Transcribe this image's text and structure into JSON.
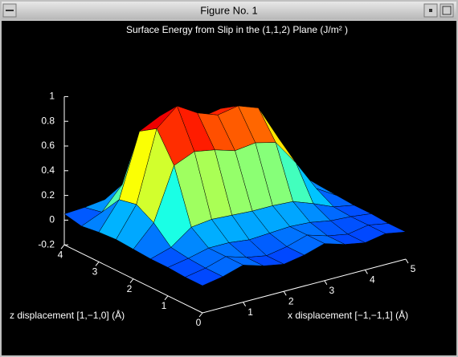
{
  "window": {
    "title": "Figure No. 1"
  },
  "chart_data": {
    "type": "surface",
    "title": "Surface Energy from Slip in the (1,1,2) Plane (J/m² )",
    "xlabel": "x displacement [−1,−1,1] (Å)",
    "ylabel": "z displacement [1,−1,0] (Å)",
    "colormap": "jet",
    "x": [
      0,
      0.5,
      1,
      1.5,
      2,
      2.5,
      3,
      3.5,
      4,
      4.5,
      5
    ],
    "y": [
      0,
      0.5,
      1,
      1.5,
      2,
      2.5,
      3,
      3.5,
      4
    ],
    "values": [
      [
        0.02,
        0.05,
        0.1,
        0.05,
        0.02,
        0.05,
        0.1,
        0.05,
        0.02,
        0.05,
        0.02
      ],
      [
        0.02,
        0.05,
        0.1,
        0.05,
        0.02,
        0.05,
        0.1,
        0.05,
        0.02,
        0.05,
        0.02
      ],
      [
        0.03,
        0.06,
        0.1,
        0.1,
        0.08,
        0.09,
        0.1,
        0.09,
        0.06,
        0.05,
        0.03
      ],
      [
        0.03,
        0.08,
        0.2,
        0.22,
        0.21,
        0.2,
        0.2,
        0.19,
        0.13,
        0.06,
        0.03
      ],
      [
        0.04,
        0.21,
        0.63,
        0.7,
        0.67,
        0.62,
        0.64,
        0.6,
        0.39,
        0.14,
        0.04
      ],
      [
        0.05,
        0.29,
        0.86,
        1.0,
        0.9,
        0.84,
        0.87,
        0.81,
        0.52,
        0.19,
        0.05
      ],
      [
        0.04,
        0.26,
        0.77,
        0.85,
        0.81,
        0.75,
        0.78,
        0.72,
        0.47,
        0.17,
        0.04
      ],
      [
        0.02,
        0.09,
        0.27,
        0.3,
        0.29,
        0.26,
        0.28,
        0.26,
        0.17,
        0.06,
        0.02
      ],
      [
        0.05,
        0.06,
        0.08,
        0.1,
        0.08,
        0.06,
        0.08,
        0.1,
        0.08,
        0.06,
        0.05
      ]
    ],
    "xlim": [
      0,
      5
    ],
    "xticks": [
      1,
      2,
      3,
      4,
      5
    ],
    "ylim": [
      0,
      4
    ],
    "yticks": [
      0,
      1,
      2,
      3,
      4
    ],
    "zlim": [
      -0.2,
      1
    ],
    "zticks": [
      -0.2,
      0,
      0.2,
      0.4,
      0.6,
      0.8,
      1
    ]
  }
}
